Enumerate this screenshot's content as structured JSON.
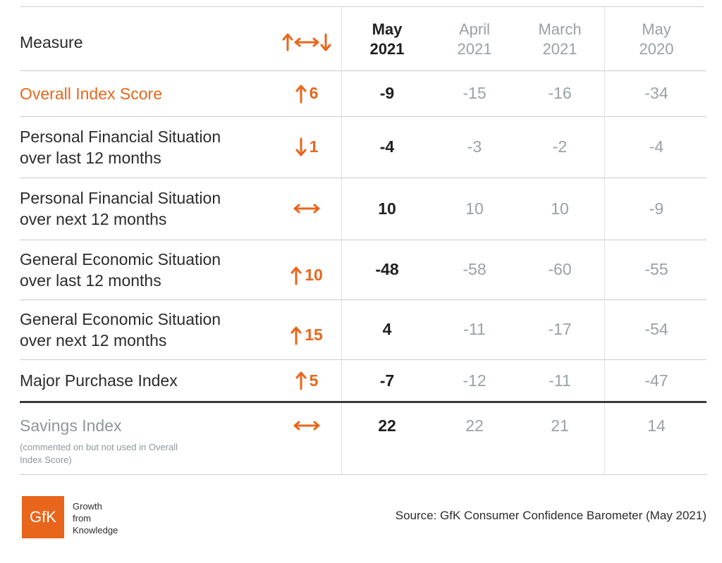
{
  "chart_data": {
    "type": "table",
    "header": {
      "measure": "Measure",
      "change_icon": "up-left-right-down-arrows-icon",
      "periods": [
        {
          "line1": "May",
          "line2": "2021"
        },
        {
          "line1": "April",
          "line2": "2021"
        },
        {
          "line1": "March",
          "line2": "2021"
        },
        {
          "line1": "May",
          "line2": "2020"
        }
      ]
    },
    "rows": [
      {
        "measure_line1": "Overall Index Score",
        "measure_line2": "",
        "change_direction": "up",
        "change_value": "6",
        "values": [
          "-9",
          "-15",
          "-16",
          "-34"
        ]
      },
      {
        "measure_line1": "Personal Financial Situation",
        "measure_line2": "over last 12 months",
        "change_direction": "down",
        "change_value": "1",
        "values": [
          "-4",
          "-3",
          "-2",
          "-4"
        ]
      },
      {
        "measure_line1": "Personal Financial Situation",
        "measure_line2": "over next 12 months",
        "change_direction": "none",
        "change_value": "",
        "values": [
          "10",
          "10",
          "10",
          "-9"
        ]
      },
      {
        "measure_line1": "General Economic Situation",
        "measure_line2": "over last 12 months",
        "change_direction": "up",
        "change_value": "10",
        "values": [
          "-48",
          "-58",
          "-60",
          "-55"
        ]
      },
      {
        "measure_line1": "General Economic Situation",
        "measure_line2": "over next 12 months",
        "change_direction": "up",
        "change_value": "15",
        "values": [
          "4",
          "-11",
          "-17",
          "-54"
        ]
      },
      {
        "measure_line1": "Major Purchase Index",
        "measure_line2": "",
        "change_direction": "up",
        "change_value": "5",
        "values": [
          "-7",
          "-12",
          "-11",
          "-47"
        ]
      },
      {
        "measure_line1": "Savings Index",
        "measure_line2": "",
        "change_direction": "none",
        "change_value": "",
        "values": [
          "22",
          "22",
          "21",
          "14"
        ]
      }
    ],
    "savings_note_line1": "(commented on but not used in Overall",
    "savings_note_line2": "Index Score)"
  },
  "colors": {
    "accent": "#e8661b",
    "muted": "#9aa1a5",
    "text": "#2b2b2b"
  },
  "footer": {
    "logo_text": "GfK",
    "tagline": [
      "Growth",
      "from",
      "Knowledge"
    ],
    "source": "Source: GfK Consumer Confidence Barometer (May 2021)"
  }
}
